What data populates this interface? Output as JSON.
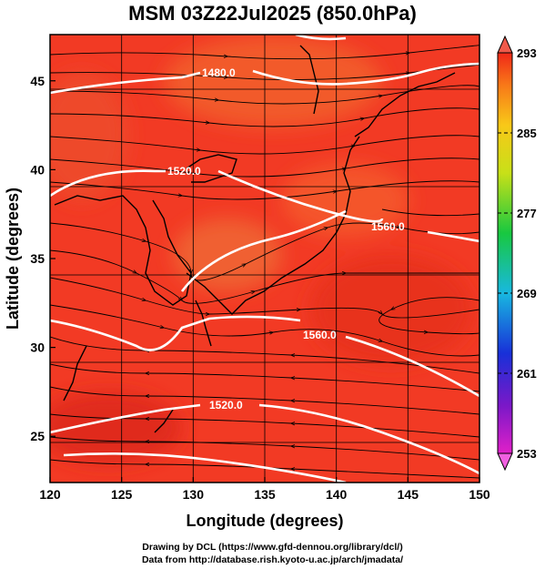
{
  "title": "MSM 03Z22Jul2025 (850.0hPa)",
  "map": {
    "xlabel": "Longitude (degrees)",
    "ylabel": "Latitude  (degrees)",
    "x_ticks": [
      "120",
      "125",
      "130",
      "135",
      "140",
      "145",
      "150"
    ],
    "y_ticks": [
      "25",
      "30",
      "35",
      "40",
      "45"
    ],
    "x_tick_values": [
      120,
      125,
      130,
      135,
      140,
      145,
      150
    ],
    "y_tick_values": [
      25,
      30,
      35,
      40,
      45
    ],
    "lon_range": [
      120,
      150
    ],
    "lat_range": [
      22.4,
      47.6
    ]
  },
  "contours": [
    {
      "label": "1480.0"
    },
    {
      "label": "1520.0"
    },
    {
      "label": "1560.0"
    },
    {
      "label": "1560.0"
    },
    {
      "label": "1520.0"
    }
  ],
  "colorbar": {
    "labels": [
      "293",
      "285",
      "277",
      "269",
      "261",
      "253"
    ],
    "values": [
      293,
      285,
      277,
      269,
      261,
      253
    ],
    "min": 253,
    "max": 293
  },
  "colors": {
    "field_base": "#f23a24",
    "contour": "#ffffff",
    "streamline": "#000000"
  },
  "credits": {
    "line1": "Drawing by DCL (https://www.gfd-dennou.org/library/dcl/)",
    "line2": "Data from http://database.rish.kyoto-u.ac.jp/arch/jmadata/"
  }
}
